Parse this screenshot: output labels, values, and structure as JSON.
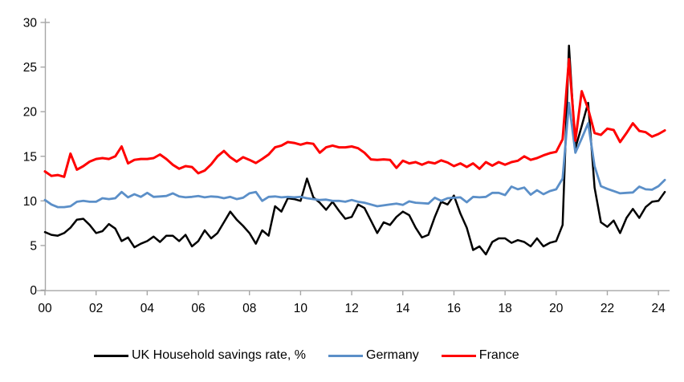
{
  "chart_data": {
    "type": "line",
    "title": "",
    "xlabel": "",
    "ylabel": "",
    "x_start_year": 2000,
    "points_per_year": 4,
    "x_tick_labels": [
      "00",
      "02",
      "04",
      "06",
      "08",
      "10",
      "12",
      "14",
      "16",
      "18",
      "20",
      "22",
      "24"
    ],
    "y_ticks": [
      0,
      5,
      10,
      15,
      20,
      25,
      30
    ],
    "ylim": [
      0,
      30
    ],
    "grid": false,
    "legend_position": "bottom",
    "axis_color": "#A6A6A6",
    "tick_label_color": "#000000",
    "background_color": "#FFFFFF",
    "series": [
      {
        "name": "UK Household savings rate, %",
        "color": "#000000",
        "stroke_width": 2.5,
        "values": [
          6.5,
          6.2,
          6.1,
          6.4,
          7.0,
          7.9,
          8.0,
          7.3,
          6.4,
          6.6,
          7.4,
          6.9,
          5.5,
          5.9,
          4.8,
          5.2,
          5.5,
          6.0,
          5.4,
          6.1,
          6.1,
          5.5,
          6.2,
          4.9,
          5.5,
          6.7,
          5.8,
          6.4,
          7.6,
          8.8,
          7.9,
          7.2,
          6.4,
          5.2,
          6.7,
          6.1,
          9.4,
          8.8,
          10.3,
          10.2,
          10.0,
          12.5,
          10.4,
          9.8,
          9.0,
          9.9,
          8.9,
          8.0,
          8.2,
          9.6,
          9.2,
          7.8,
          6.4,
          7.6,
          7.3,
          8.2,
          8.8,
          8.4,
          7.0,
          5.9,
          6.2,
          8.2,
          9.9,
          9.6,
          10.6,
          8.6,
          7.0,
          4.5,
          4.9,
          4.0,
          5.4,
          5.8,
          5.8,
          5.3,
          5.6,
          5.4,
          4.9,
          5.8,
          4.9,
          5.3,
          5.5,
          7.3,
          27.4,
          15.9,
          18.4,
          21.0,
          11.5,
          7.6,
          7.1,
          7.8,
          6.4,
          8.1,
          9.1,
          8.1,
          9.3,
          9.9,
          10.0,
          11.0
        ]
      },
      {
        "name": "Germany",
        "color": "#5B8FC8",
        "stroke_width": 2.8,
        "values": [
          10.1,
          9.6,
          9.3,
          9.3,
          9.4,
          9.9,
          10.0,
          9.9,
          9.9,
          10.3,
          10.2,
          10.3,
          11.0,
          10.4,
          10.75,
          10.45,
          10.9,
          10.45,
          10.5,
          10.55,
          10.85,
          10.5,
          10.4,
          10.45,
          10.55,
          10.4,
          10.5,
          10.45,
          10.3,
          10.45,
          10.2,
          10.35,
          10.85,
          11.0,
          10.0,
          10.45,
          10.5,
          10.4,
          10.45,
          10.4,
          10.45,
          10.3,
          10.2,
          10.1,
          10.15,
          10.0,
          10.0,
          9.9,
          10.1,
          9.9,
          9.8,
          9.6,
          9.4,
          9.5,
          9.6,
          9.7,
          9.55,
          9.95,
          9.8,
          9.75,
          9.7,
          10.35,
          10.0,
          10.3,
          10.35,
          10.4,
          9.85,
          10.45,
          10.4,
          10.45,
          10.9,
          10.9,
          10.65,
          11.6,
          11.3,
          11.5,
          10.7,
          11.2,
          10.75,
          11.1,
          11.3,
          12.5,
          21.0,
          15.4,
          17.0,
          18.7,
          13.9,
          11.65,
          11.35,
          11.1,
          10.85,
          10.9,
          10.95,
          11.6,
          11.3,
          11.25,
          11.65,
          12.35
        ]
      },
      {
        "name": "France",
        "color": "#FF0000",
        "stroke_width": 3.0,
        "values": [
          13.3,
          12.8,
          12.9,
          12.7,
          15.3,
          13.5,
          13.9,
          14.4,
          14.7,
          14.8,
          14.7,
          15.0,
          16.1,
          14.2,
          14.6,
          14.7,
          14.7,
          14.8,
          15.2,
          14.7,
          14.05,
          13.6,
          13.9,
          13.8,
          13.1,
          13.4,
          14.1,
          15.0,
          15.6,
          14.9,
          14.4,
          14.9,
          14.6,
          14.25,
          14.7,
          15.2,
          16.0,
          16.2,
          16.6,
          16.5,
          16.3,
          16.5,
          16.4,
          15.4,
          16.0,
          16.2,
          16.0,
          16.0,
          16.1,
          15.9,
          15.4,
          14.65,
          14.6,
          14.65,
          14.6,
          13.7,
          14.5,
          14.2,
          14.35,
          14.05,
          14.35,
          14.2,
          14.55,
          14.3,
          13.9,
          14.2,
          13.8,
          14.2,
          13.6,
          14.35,
          13.95,
          14.35,
          14.05,
          14.35,
          14.5,
          15.0,
          14.6,
          14.8,
          15.1,
          15.35,
          15.5,
          16.9,
          25.9,
          16.75,
          22.3,
          20.3,
          17.6,
          17.4,
          18.1,
          17.95,
          16.6,
          17.6,
          18.7,
          17.85,
          17.7,
          17.2,
          17.5,
          17.9
        ]
      }
    ]
  }
}
